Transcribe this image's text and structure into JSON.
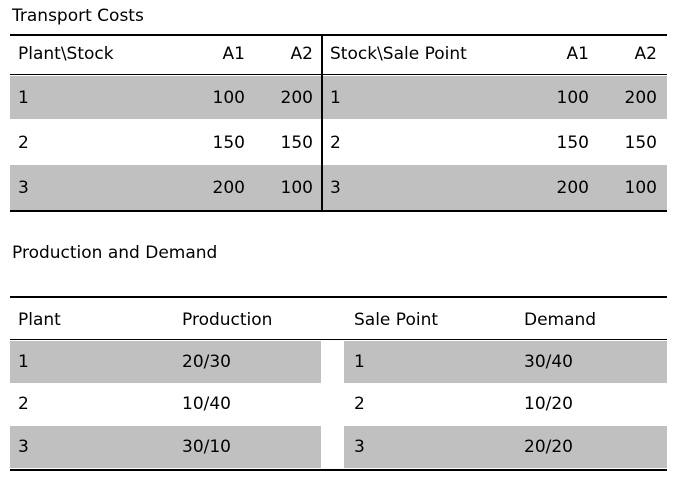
{
  "transport": {
    "title": "Transport Costs",
    "headers": [
      "Plant\\Stock",
      "A1",
      "A2",
      "Stock\\Sale Point",
      "A1",
      "A2"
    ],
    "rows": [
      [
        "1",
        "100",
        "200",
        "1",
        "100",
        "200"
      ],
      [
        "2",
        "150",
        "150",
        "2",
        "150",
        "150"
      ],
      [
        "3",
        "200",
        "100",
        "3",
        "200",
        "100"
      ]
    ]
  },
  "production": {
    "title": "Production and Demand",
    "headers": [
      "Plant",
      "Production",
      "Sale Point",
      "Demand"
    ],
    "rows": [
      [
        "1",
        "20/30",
        "1",
        "30/40"
      ],
      [
        "2",
        "10/40",
        "2",
        "10/20"
      ],
      [
        "3",
        "30/10",
        "3",
        "20/20"
      ]
    ]
  },
  "colors": {
    "band": "#c0c0c0",
    "rule": "#000000"
  }
}
